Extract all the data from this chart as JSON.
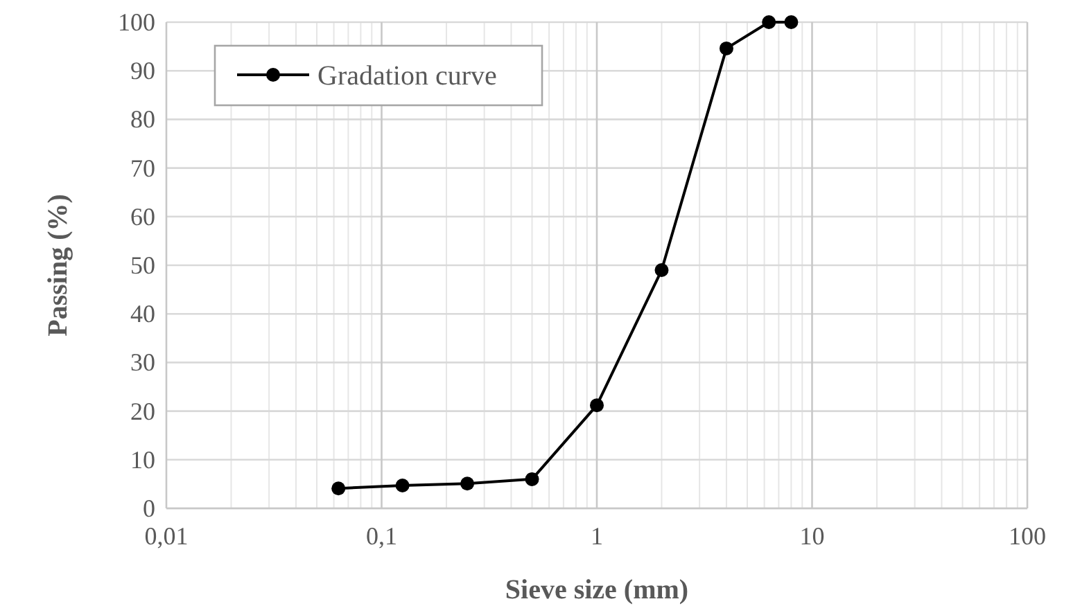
{
  "chart_data": {
    "type": "line",
    "xlabel": "Sieve size (mm)",
    "ylabel": "Passing (%)",
    "x": [
      0.063,
      0.125,
      0.25,
      0.5,
      1,
      2,
      4,
      6.3,
      8
    ],
    "series": [
      {
        "name": "Gradation curve",
        "color": "#000000",
        "values": [
          4.1,
          4.7,
          5.1,
          6.0,
          21.2,
          49,
          94.6,
          100,
          100
        ]
      }
    ],
    "log": "x",
    "xlim": [
      0.01,
      100
    ],
    "xticks": [
      {
        "value": 0.01,
        "label": "0,01"
      },
      {
        "value": 0.1,
        "label": "0,1"
      },
      1,
      10,
      100
    ],
    "ylim": [
      0,
      100
    ],
    "yticks": [
      0,
      10,
      20,
      30,
      40,
      50,
      60,
      70,
      80,
      90,
      100
    ],
    "grid": true,
    "legend": "top left",
    "marker": "circle",
    "line_style": "solid"
  }
}
